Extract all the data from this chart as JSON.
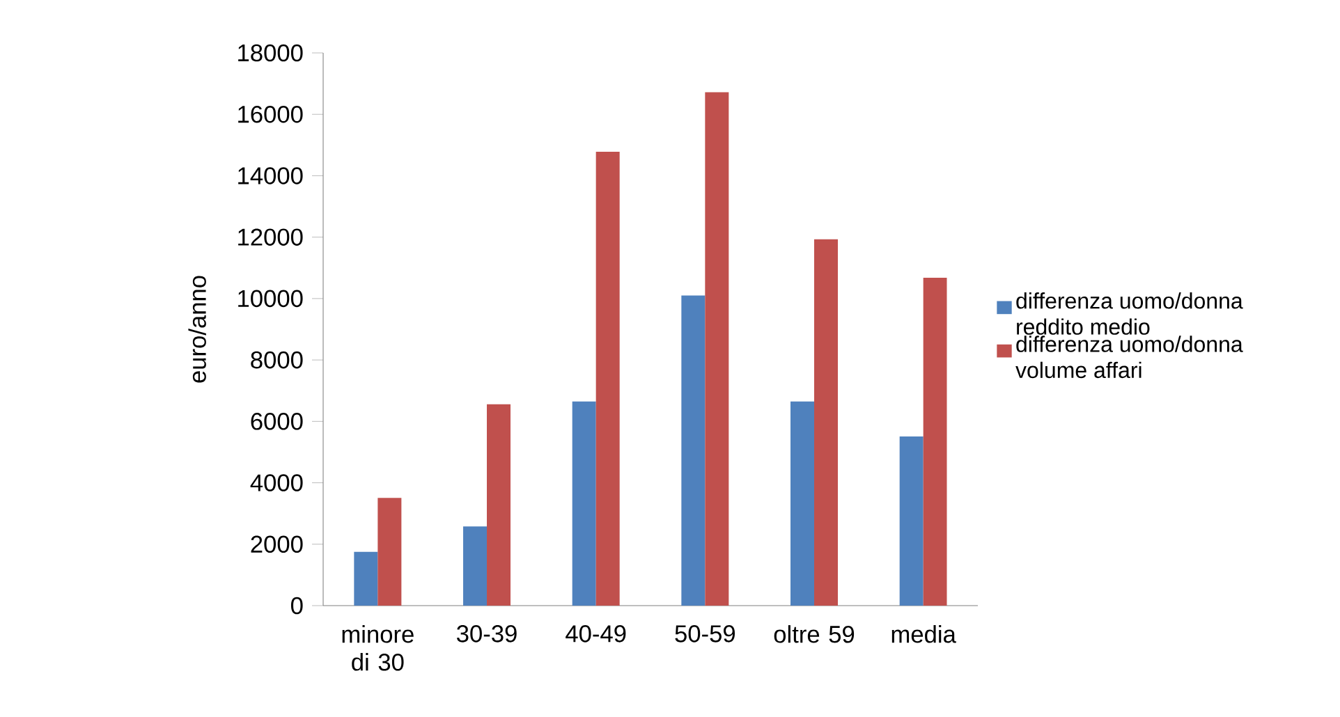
{
  "chart_data": {
    "type": "bar",
    "ylabel": "euro/anno",
    "categories": [
      "minore di 30",
      "30-39",
      "40-49",
      "50-59",
      "oltre 59",
      "media"
    ],
    "series": [
      {
        "name": "differenza uomo/donna reddito medio",
        "color": "#4f81bd",
        "values": [
          1750,
          2580,
          6650,
          10100,
          6650,
          5510
        ]
      },
      {
        "name": "differenza uomo/donna volume affari",
        "color": "#c0504d",
        "values": [
          3510,
          6560,
          14780,
          16720,
          11930,
          10680
        ]
      }
    ],
    "ylim": [
      0,
      18000
    ],
    "yticks": [
      0,
      2000,
      4000,
      6000,
      8000,
      10000,
      12000,
      14000,
      16000,
      18000
    ],
    "legend": "right"
  }
}
